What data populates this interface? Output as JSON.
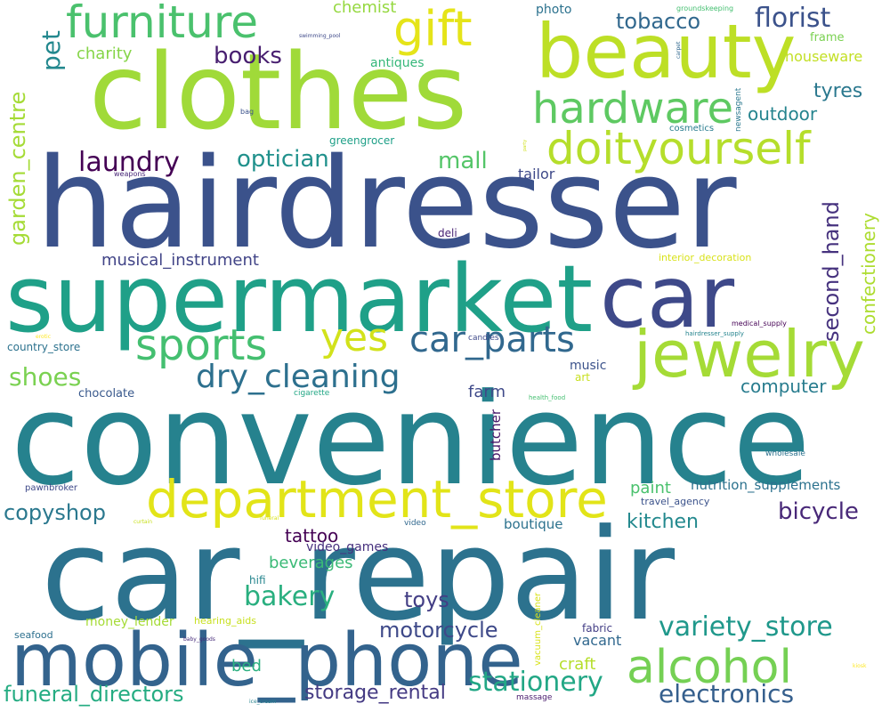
{
  "words": [
    {
      "text": "car_repair",
      "color": "#2c728e"
    },
    {
      "text": "convenience",
      "color": "#26828e"
    },
    {
      "text": "hairdresser",
      "color": "#3b528b"
    },
    {
      "text": "clothes",
      "color": "#a0da39"
    },
    {
      "text": "supermarket",
      "color": "#1fa088"
    },
    {
      "text": "mobile_phone",
      "color": "#33638d"
    },
    {
      "text": "car",
      "color": "#3e4989"
    },
    {
      "text": "beauty",
      "color": "#bddf26"
    },
    {
      "text": "jewelry",
      "color": "#a5db36"
    },
    {
      "text": "department_store",
      "color": "#e2e418"
    },
    {
      "text": "doityourself",
      "color": "#b5de2b"
    },
    {
      "text": "furniture",
      "color": "#4ac16d"
    },
    {
      "text": "hardware",
      "color": "#5ec962"
    },
    {
      "text": "sports",
      "color": "#44bf70"
    },
    {
      "text": "alcohol",
      "color": "#75d054"
    },
    {
      "text": "yes",
      "color": "#d2e21b"
    },
    {
      "text": "gift",
      "color": "#e5e419"
    },
    {
      "text": "car_parts",
      "color": "#31688e"
    },
    {
      "text": "dry_cleaning",
      "color": "#2d708e"
    },
    {
      "text": "stationery",
      "color": "#22a785"
    },
    {
      "text": "electronics",
      "color": "#355f8d"
    },
    {
      "text": "variety_store",
      "color": "#1f988b"
    },
    {
      "text": "bicycle",
      "color": "#482878"
    },
    {
      "text": "optician",
      "color": "#21918c"
    },
    {
      "text": "laundry",
      "color": "#440154"
    },
    {
      "text": "mall",
      "color": "#54c568"
    },
    {
      "text": "florist",
      "color": "#3b528b"
    },
    {
      "text": "tobacco",
      "color": "#31688e"
    },
    {
      "text": "books",
      "color": "#481f70"
    },
    {
      "text": "pet",
      "color": "#23888e"
    },
    {
      "text": "shoes",
      "color": "#7ad151"
    },
    {
      "text": "bakery",
      "color": "#29af7f"
    },
    {
      "text": "copyshop",
      "color": "#2a788e"
    },
    {
      "text": "funeral_directors",
      "color": "#25ac82"
    },
    {
      "text": "motorcycle",
      "color": "#3e4989"
    },
    {
      "text": "second_hand",
      "color": "#46327e"
    },
    {
      "text": "garden_centre",
      "color": "#a5db36"
    },
    {
      "text": "confectionery",
      "color": "#addc30"
    },
    {
      "text": "storage_rental",
      "color": "#443a83"
    },
    {
      "text": "kitchen",
      "color": "#23898e"
    },
    {
      "text": "computer",
      "color": "#287c8e"
    },
    {
      "text": "tyres",
      "color": "#2a788e"
    },
    {
      "text": "outdoor",
      "color": "#25848e"
    },
    {
      "text": "toys",
      "color": "#433e85"
    },
    {
      "text": "tattoo",
      "color": "#440154"
    },
    {
      "text": "paint",
      "color": "#4ac16d"
    },
    {
      "text": "musical_instrument",
      "color": "#414487"
    },
    {
      "text": "beverages",
      "color": "#3aba76"
    },
    {
      "text": "houseware",
      "color": "#c2df23"
    },
    {
      "text": "charity",
      "color": "#86d549"
    },
    {
      "text": "chemist",
      "color": "#95d840"
    },
    {
      "text": "farm",
      "color": "#3e4989"
    },
    {
      "text": "craft",
      "color": "#b5de2b"
    },
    {
      "text": "nutrition_supplements",
      "color": "#2c728e"
    },
    {
      "text": "bed",
      "color": "#2ab07f"
    },
    {
      "text": "boutique",
      "color": "#2c728e"
    },
    {
      "text": "vacant",
      "color": "#31688e"
    },
    {
      "text": "tailor",
      "color": "#3e4989"
    },
    {
      "text": "butcher",
      "color": "#48186a"
    },
    {
      "text": "money_lender",
      "color": "#a5db36"
    },
    {
      "text": "antiques",
      "color": "#35b779"
    },
    {
      "text": "frame",
      "color": "#7ad151"
    },
    {
      "text": "chocolate",
      "color": "#38588c"
    },
    {
      "text": "video_games",
      "color": "#46307e"
    },
    {
      "text": "music",
      "color": "#3b528b"
    },
    {
      "text": "hifi",
      "color": "#25858e"
    },
    {
      "text": "photo",
      "color": "#2c728e"
    },
    {
      "text": "deli",
      "color": "#482475"
    },
    {
      "text": "art",
      "color": "#c8e020"
    },
    {
      "text": "interior_decoration",
      "color": "#d8e219"
    },
    {
      "text": "greengrocer",
      "color": "#1fa088"
    },
    {
      "text": "fabric",
      "color": "#433e85"
    },
    {
      "text": "travel_agency",
      "color": "#3b528b"
    },
    {
      "text": "country_store",
      "color": "#2c728e"
    },
    {
      "text": "hearing_aids",
      "color": "#c8e020"
    },
    {
      "text": "seafood",
      "color": "#2d708e"
    },
    {
      "text": "pawnbroker",
      "color": "#3e4989"
    },
    {
      "text": "cosmetics",
      "color": "#287c8e"
    },
    {
      "text": "vacuum_cleaner",
      "color": "#d8e219"
    },
    {
      "text": "massage",
      "color": "#481b6d"
    },
    {
      "text": "newsagent",
      "color": "#2a788e"
    },
    {
      "text": "candles",
      "color": "#3e4989"
    },
    {
      "text": "groundskeeping",
      "color": "#44bf70"
    },
    {
      "text": "medical_supply",
      "color": "#440154"
    },
    {
      "text": "hairdresser_supply",
      "color": "#25848e"
    },
    {
      "text": "wholesale",
      "color": "#2c728e"
    },
    {
      "text": "cigarette",
      "color": "#22a785"
    },
    {
      "text": "health_food",
      "color": "#44bf70"
    },
    {
      "text": "video",
      "color": "#31688e"
    },
    {
      "text": "bag",
      "color": "#3b528b"
    },
    {
      "text": "weapons",
      "color": "#482878"
    },
    {
      "text": "swimming_pool",
      "color": "#3e4989"
    },
    {
      "text": "carpet",
      "color": "#31688e"
    },
    {
      "text": "curtain",
      "color": "#c8e020"
    },
    {
      "text": "funeral",
      "color": "#d8e219"
    },
    {
      "text": "baby_goods",
      "color": "#472c7a"
    },
    {
      "text": "ice_cream",
      "color": "#26828e"
    },
    {
      "text": "erotic",
      "color": "#fde725"
    },
    {
      "text": "party",
      "color": "#cfe11c"
    },
    {
      "text": "kiosk",
      "color": "#fde725"
    }
  ]
}
